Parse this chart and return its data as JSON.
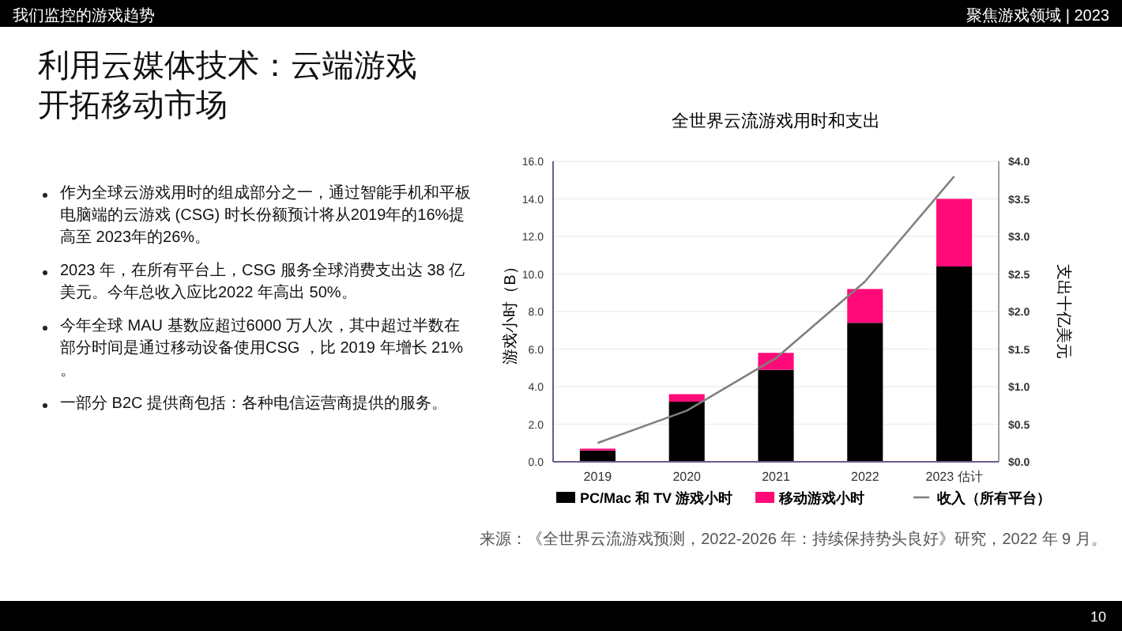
{
  "chart_data": {
    "type": "bar",
    "title": "全世界云流游戏用时和支出",
    "ylabel": "游戏小时（B）",
    "y2label": "支出十亿美元",
    "stacked": true,
    "grid": "y",
    "legend": "bottom",
    "categories": [
      "2019",
      "2020",
      "2021",
      "2022",
      "2023 估计"
    ],
    "series": [
      {
        "name": "PC/Mac 和 TV 游戏小时",
        "color": "#000000",
        "values": [
          0.6,
          3.2,
          4.9,
          7.4,
          10.4
        ]
      },
      {
        "name": "移动游戏小时",
        "color": "#ff0a78",
        "values": [
          0.1,
          0.4,
          0.9,
          1.8,
          3.6
        ]
      },
      {
        "name": "收入（所有平台）",
        "type": "line",
        "axis": "y2",
        "color": "#808080",
        "values": [
          0.25,
          0.68,
          1.38,
          2.4,
          3.8
        ]
      }
    ],
    "ylim": [
      0,
      16
    ],
    "yticks": [
      {
        "value": 0,
        "label": "0.0"
      },
      {
        "value": 2,
        "label": "2.0"
      },
      {
        "value": 4,
        "label": "4.0"
      },
      {
        "value": 6,
        "label": "6.0"
      },
      {
        "value": 8,
        "label": "8.0"
      },
      {
        "value": 10,
        "label": "10.0"
      },
      {
        "value": 12,
        "label": "12.0"
      },
      {
        "value": 14,
        "label": "14.0"
      },
      {
        "value": 16,
        "label": "16.0"
      }
    ],
    "y2lim": [
      0,
      4
    ],
    "y2ticks": [
      {
        "value": 0,
        "label": "$0.0"
      },
      {
        "value": 0.5,
        "label": "$0.5"
      },
      {
        "value": 1,
        "label": "$1.0"
      },
      {
        "value": 1.5,
        "label": "$1.5"
      },
      {
        "value": 2,
        "label": "$2.0"
      },
      {
        "value": 2.5,
        "label": "$2.5"
      },
      {
        "value": 3,
        "label": "$3.0"
      },
      {
        "value": 3.5,
        "label": "$3.5"
      },
      {
        "value": 4,
        "label": "$4.0"
      }
    ],
    "annotations": [
      "我们监控的游戏趋势",
      "聚焦游戏领域 | 2023",
      "利用云媒体技术：云端游戏开拓移动市场",
      "作为全球云游戏用时的组成部分之一，通过智能手机和平板电脑端的云游戏 (CSG) 时长份额预计将从2019年的16%提高至 2023年的26%。",
      "2023 年，在所有平台上，CSG 服务全球消费支出达 38 亿美元。今年总收入应比2022 年高出 50%。",
      "今年全球 MAU 基数应超过6000 万人次，其中超过半数在部分时间是通过移动设备使用CSG ，比 2019 年增长 21% 。",
      "一部分 B2C 提供商包括：各种电信运营商提供的服务。",
      "来源：《全世界云流游戏预测，2022-2026 年：持续保持势头良好》研究，2022 年 9 月。",
      "10"
    ]
  }
}
